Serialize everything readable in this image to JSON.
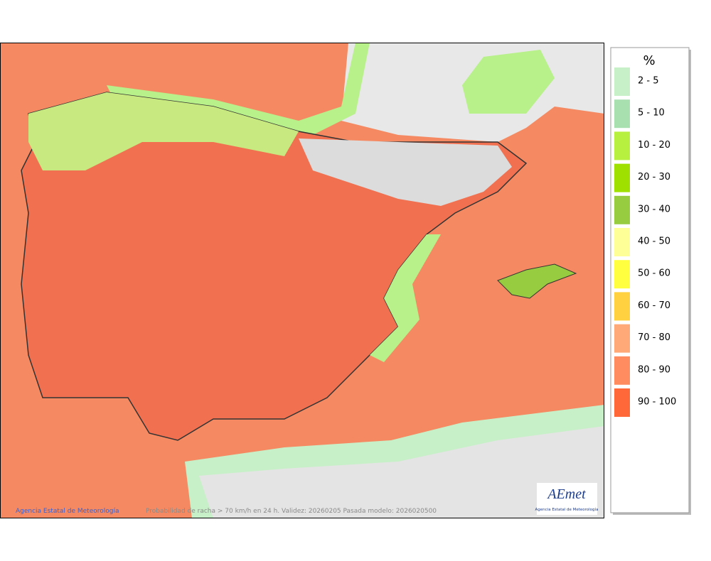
{
  "legend": {
    "title": "%",
    "items": [
      {
        "label": "2 - 5",
        "color": "#c8f0c8"
      },
      {
        "label": "5 - 10",
        "color": "#a8e0b0"
      },
      {
        "label": "10 - 20",
        "color": "#b8f040"
      },
      {
        "label": "20 - 30",
        "color": "#a0e000"
      },
      {
        "label": "30 - 40",
        "color": "#98cc40"
      },
      {
        "label": "40 - 50",
        "color": "#ffff98"
      },
      {
        "label": "50 - 60",
        "color": "#ffff40"
      },
      {
        "label": "60 - 70",
        "color": "#ffd040"
      },
      {
        "label": "70 - 80",
        "color": "#ffa878"
      },
      {
        "label": "80 - 90",
        "color": "#ff8c60"
      },
      {
        "label": "90 - 100",
        "color": "#ff6838"
      }
    ]
  },
  "footer": {
    "credit": "Agencia Estatal de Meteorología",
    "caption": "Probabilidad de racha > 70 km/h en 24 h. Validez: 20260205 Pasada modelo: 2026020500"
  },
  "logo": {
    "name": "AEmet",
    "subtitle": "Agencia Estatal de Meteorología"
  }
}
